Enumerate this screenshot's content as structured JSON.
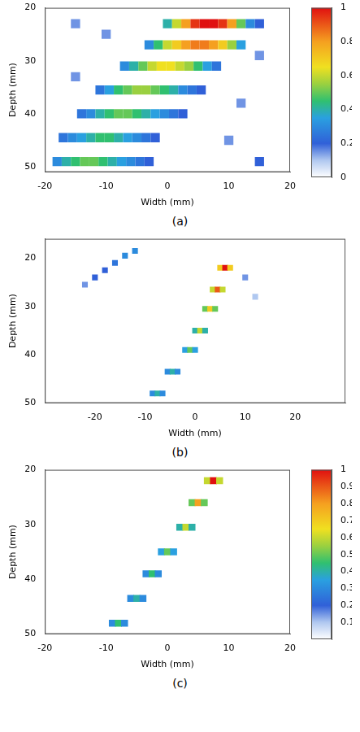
{
  "chart_data": [
    {
      "type": "heatmap",
      "label": "(a)",
      "x_label": "Width (mm)",
      "y_label": "Depth (mm)",
      "xlim": [
        -20,
        20
      ],
      "ylim": [
        20,
        51
      ],
      "xticks": [
        -20,
        -10,
        0,
        10,
        20
      ],
      "yticks": [
        20,
        30,
        40,
        50
      ],
      "cells": [
        [
          15,
          23,
          0.2
        ],
        [
          -15,
          23,
          0.15
        ],
        [
          -10,
          25,
          0.15
        ],
        [
          15,
          29,
          0.15
        ],
        [
          -15,
          33,
          0.15
        ],
        [
          12,
          38,
          0.15
        ],
        [
          10,
          45,
          0.15
        ],
        [
          15,
          49,
          0.2
        ],
        [
          0,
          23,
          0.4
        ],
        [
          1.5,
          23,
          0.6
        ],
        [
          3,
          23,
          0.8
        ],
        [
          4.5,
          23,
          0.95
        ],
        [
          6,
          23,
          1
        ],
        [
          7.5,
          23,
          1
        ],
        [
          9,
          23,
          0.95
        ],
        [
          10.5,
          23,
          0.8
        ],
        [
          12,
          23,
          0.5
        ],
        [
          13.5,
          23,
          0.3
        ],
        [
          -3,
          27,
          0.3
        ],
        [
          -1.5,
          27,
          0.45
        ],
        [
          0,
          27,
          0.6
        ],
        [
          1.5,
          27,
          0.7
        ],
        [
          3,
          27,
          0.8
        ],
        [
          4.5,
          27,
          0.85
        ],
        [
          6,
          27,
          0.85
        ],
        [
          7.5,
          27,
          0.8
        ],
        [
          9,
          27,
          0.7
        ],
        [
          10.5,
          27,
          0.55
        ],
        [
          12,
          27,
          0.35
        ],
        [
          -7,
          31,
          0.3
        ],
        [
          -5.5,
          31,
          0.4
        ],
        [
          -4,
          31,
          0.5
        ],
        [
          -2.5,
          31,
          0.6
        ],
        [
          -1,
          31,
          0.65
        ],
        [
          0.5,
          31,
          0.65
        ],
        [
          2,
          31,
          0.6
        ],
        [
          3.5,
          31,
          0.55
        ],
        [
          5,
          31,
          0.45
        ],
        [
          6.5,
          31,
          0.35
        ],
        [
          8,
          31,
          0.25
        ],
        [
          -11,
          35.5,
          0.25
        ],
        [
          -9.5,
          35.5,
          0.35
        ],
        [
          -8,
          35.5,
          0.45
        ],
        [
          -6.5,
          35.5,
          0.5
        ],
        [
          -5,
          35.5,
          0.55
        ],
        [
          -3.5,
          35.5,
          0.55
        ],
        [
          -2,
          35.5,
          0.5
        ],
        [
          -0.5,
          35.5,
          0.45
        ],
        [
          1,
          35.5,
          0.4
        ],
        [
          2.5,
          35.5,
          0.3
        ],
        [
          4,
          35.5,
          0.25
        ],
        [
          5.5,
          35.5,
          0.2
        ],
        [
          -14,
          40,
          0.25
        ],
        [
          -12.5,
          40,
          0.3
        ],
        [
          -11,
          40,
          0.4
        ],
        [
          -9.5,
          40,
          0.45
        ],
        [
          -8,
          40,
          0.5
        ],
        [
          -6.5,
          40,
          0.5
        ],
        [
          -5,
          40,
          0.45
        ],
        [
          -3.5,
          40,
          0.4
        ],
        [
          -2,
          40,
          0.35
        ],
        [
          -0.5,
          40,
          0.3
        ],
        [
          1,
          40,
          0.25
        ],
        [
          2.5,
          40,
          0.2
        ],
        [
          -17,
          44.5,
          0.25
        ],
        [
          -15.5,
          44.5,
          0.3
        ],
        [
          -14,
          44.5,
          0.35
        ],
        [
          -12.5,
          44.5,
          0.4
        ],
        [
          -11,
          44.5,
          0.45
        ],
        [
          -9.5,
          44.5,
          0.45
        ],
        [
          -8,
          44.5,
          0.4
        ],
        [
          -6.5,
          44.5,
          0.35
        ],
        [
          -5,
          44.5,
          0.3
        ],
        [
          -3.5,
          44.5,
          0.25
        ],
        [
          -2,
          44.5,
          0.2
        ],
        [
          -18,
          49,
          0.3
        ],
        [
          -16.5,
          49,
          0.4
        ],
        [
          -15,
          49,
          0.45
        ],
        [
          -13.5,
          49,
          0.5
        ],
        [
          -12,
          49,
          0.5
        ],
        [
          -10.5,
          49,
          0.45
        ],
        [
          -9,
          49,
          0.4
        ],
        [
          -7.5,
          49,
          0.35
        ],
        [
          -6,
          49,
          0.3
        ],
        [
          -4.5,
          49,
          0.25
        ],
        [
          -3,
          49,
          0.2
        ]
      ],
      "colorbar": {
        "range": [
          0,
          1
        ],
        "ticks": [
          0,
          0.2,
          0.4,
          0.6,
          0.8,
          1
        ]
      }
    },
    {
      "type": "heatmap",
      "label": "(b)",
      "x_label": "Width (mm)",
      "y_label": "Depth (mm)",
      "xlim": [
        -30,
        30
      ],
      "ylim": [
        16,
        50
      ],
      "xticks": [
        -20,
        -10,
        0,
        10,
        20
      ],
      "yticks": [
        20,
        30,
        40,
        50
      ],
      "cells": [
        [
          10,
          24,
          0.15
        ],
        [
          12,
          28,
          0.1
        ],
        [
          -12,
          18.5,
          0.3
        ],
        [
          -14,
          19.5,
          0.3
        ],
        [
          -16,
          21,
          0.25
        ],
        [
          -18,
          22.5,
          0.2
        ],
        [
          -20,
          24,
          0.2
        ],
        [
          -22,
          25.5,
          0.15
        ],
        [
          5,
          22,
          0.7
        ],
        [
          6,
          22,
          1
        ],
        [
          7,
          22,
          0.7
        ],
        [
          3.5,
          26.5,
          0.6
        ],
        [
          4.5,
          26.5,
          0.9
        ],
        [
          5.5,
          26.5,
          0.6
        ],
        [
          2,
          30.5,
          0.5
        ],
        [
          3,
          30.5,
          0.7
        ],
        [
          4,
          30.5,
          0.5
        ],
        [
          0,
          35,
          0.4
        ],
        [
          1,
          35,
          0.6
        ],
        [
          2,
          35,
          0.4
        ],
        [
          -2,
          39,
          0.35
        ],
        [
          -1,
          39,
          0.5
        ],
        [
          0,
          39,
          0.35
        ],
        [
          -5.5,
          43.5,
          0.3
        ],
        [
          -4.5,
          43.5,
          0.4
        ],
        [
          -3.5,
          43.5,
          0.3
        ],
        [
          -8.5,
          48,
          0.3
        ],
        [
          -7.5,
          48,
          0.4
        ],
        [
          -6.5,
          48,
          0.3
        ]
      ]
    },
    {
      "type": "heatmap",
      "label": "(c)",
      "x_label": "Width (mm)",
      "y_label": "Depth (mm)",
      "xlim": [
        -20,
        20
      ],
      "ylim": [
        20,
        50
      ],
      "xticks": [
        -20,
        -10,
        0,
        10,
        20
      ],
      "yticks": [
        20,
        30,
        40,
        50
      ],
      "cells": [
        [
          6.5,
          22,
          0.6
        ],
        [
          7.5,
          22,
          1
        ],
        [
          8.5,
          22,
          0.6
        ],
        [
          4,
          26,
          0.5
        ],
        [
          5,
          26,
          0.8
        ],
        [
          6,
          26,
          0.5
        ],
        [
          2,
          30.5,
          0.4
        ],
        [
          3,
          30.5,
          0.6
        ],
        [
          4,
          30.5,
          0.4
        ],
        [
          -1,
          35,
          0.35
        ],
        [
          0,
          35,
          0.5
        ],
        [
          1,
          35,
          0.35
        ],
        [
          -3.5,
          39,
          0.3
        ],
        [
          -2.5,
          39,
          0.45
        ],
        [
          -1.5,
          39,
          0.3
        ],
        [
          -6,
          43.5,
          0.3
        ],
        [
          -5,
          43.5,
          0.4
        ],
        [
          -4,
          43.5,
          0.3
        ],
        [
          -9,
          48,
          0.3
        ],
        [
          -8,
          48,
          0.45
        ],
        [
          -7,
          48,
          0.3
        ]
      ],
      "colorbar": {
        "range": [
          0,
          1
        ],
        "ticks": [
          0.1,
          0.2,
          0.3,
          0.4,
          0.5,
          0.6,
          0.7,
          0.8,
          0.9,
          1
        ]
      }
    }
  ]
}
